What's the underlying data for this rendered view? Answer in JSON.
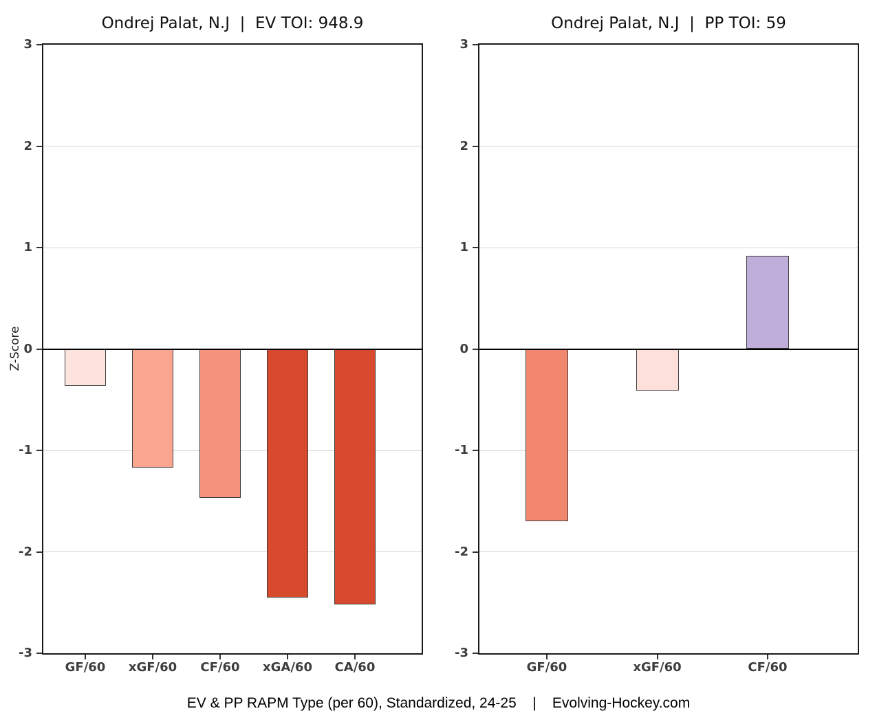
{
  "caption": "EV & PP RAPM Type (per 60), Standardized, 24-25    |    Evolving-Hockey.com",
  "y_axis": {
    "label": "Z-Score",
    "ticks": [
      3,
      2,
      1,
      0,
      -1,
      -2,
      -3
    ],
    "min": -3,
    "max": 3
  },
  "chart_data": [
    {
      "type": "bar",
      "panel": "EV",
      "title": "Ondrej Palat, N.J  |  EV TOI: 948.9",
      "categories": [
        "GF/60",
        "xGF/60",
        "CF/60",
        "xGA/60",
        "CA/60"
      ],
      "values": [
        -0.36,
        -1.17,
        -1.47,
        -2.45,
        -2.52
      ],
      "bar_colors": [
        "#fde3dd",
        "#f9a58f",
        "#f5937e",
        "#d84a2e",
        "#d84a2e"
      ],
      "xlabel": "",
      "ylabel": "Z-Score",
      "ylim": [
        -3,
        3
      ],
      "grid": "horizontal-integer-lines",
      "legend": "none"
    },
    {
      "type": "bar",
      "panel": "PP",
      "title": "Ondrej Palat, N.J  |  PP TOI: 59",
      "categories": [
        "GF/60",
        "xGF/60",
        "CF/60"
      ],
      "values": [
        -1.7,
        -0.41,
        0.92
      ],
      "bar_colors": [
        "#f28770",
        "#fde0da",
        "#bfadda"
      ],
      "xlabel": "",
      "ylabel": "Z-Score",
      "ylim": [
        -3,
        3
      ],
      "grid": "horizontal-integer-lines",
      "legend": "none"
    }
  ],
  "colors": {
    "grid": "#d4d4d4",
    "axis_border": "#1a1a1a",
    "zero_line": "#000000",
    "tick_label": "#3d3d3d",
    "bar_stroke": "#3d3d3d",
    "title_text": "#111111"
  }
}
